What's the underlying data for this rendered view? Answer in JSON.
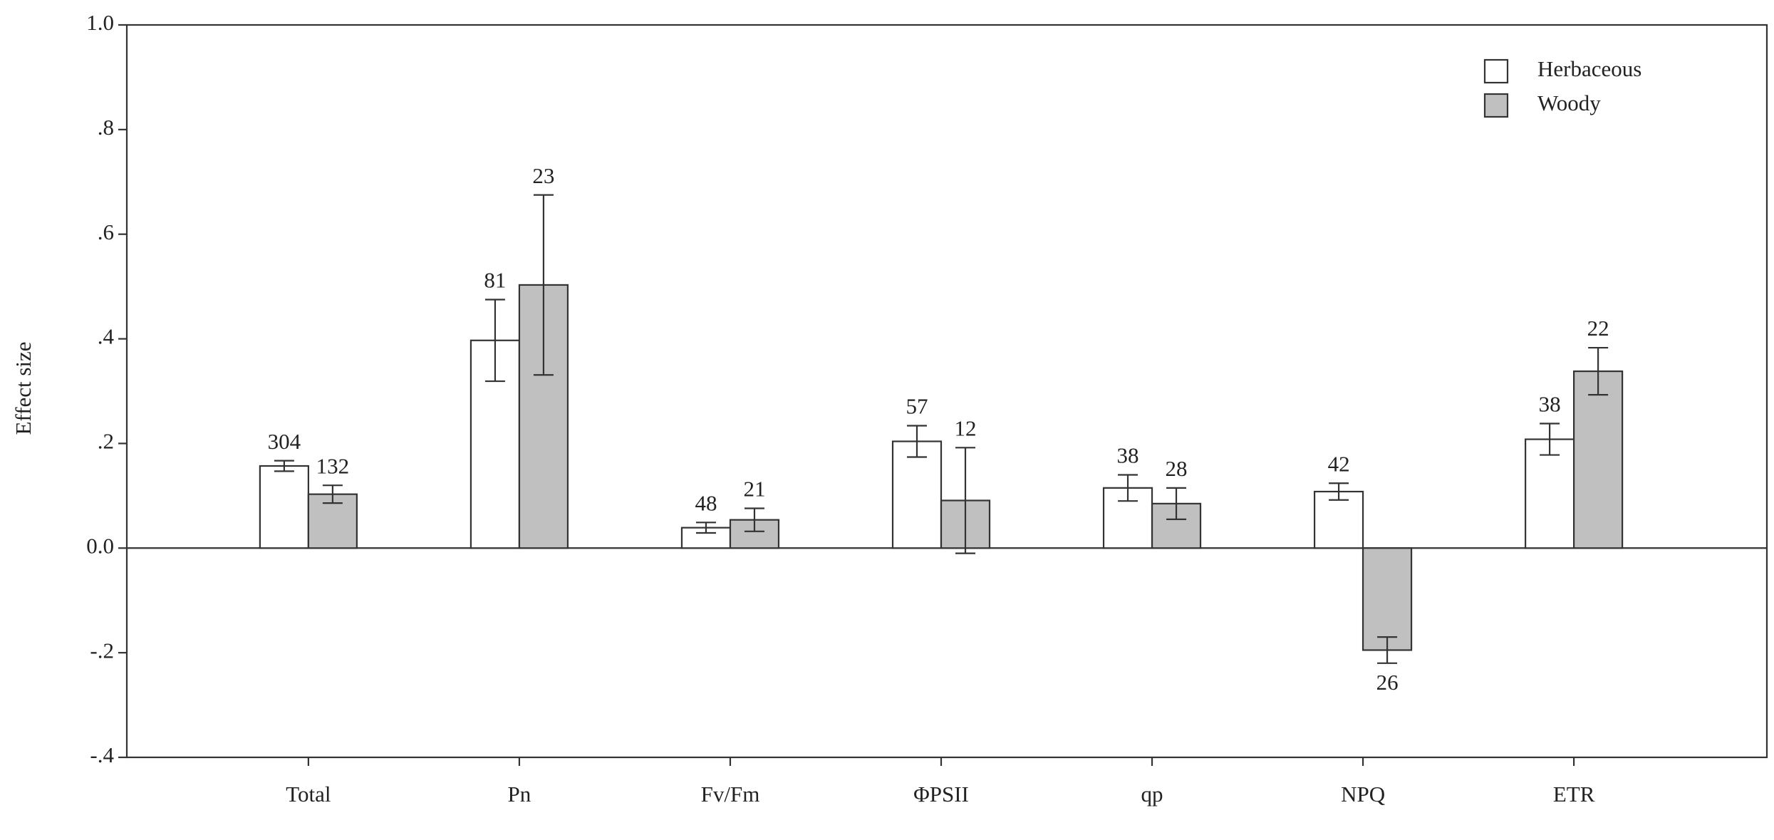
{
  "chart_data": {
    "type": "bar",
    "y_label": "Effect size",
    "categories": [
      "Total",
      "Pn",
      "Fv/Fm",
      "ΦPSII",
      "qp",
      "NPQ",
      "ETR"
    ],
    "series": [
      {
        "name": "Herbaceous",
        "color": "#ffffff",
        "values": [
          0.157,
          0.397,
          0.039,
          0.204,
          0.115,
          0.108,
          0.208
        ],
        "errors": [
          0.01,
          0.078,
          0.01,
          0.03,
          0.025,
          0.016,
          0.03
        ],
        "counts": [
          304,
          81,
          48,
          57,
          38,
          42,
          38
        ]
      },
      {
        "name": "Woody",
        "color": "#c0c0c0",
        "values": [
          0.103,
          0.503,
          0.054,
          0.091,
          0.085,
          -0.195,
          0.338
        ],
        "errors": [
          0.017,
          0.172,
          0.022,
          0.101,
          0.03,
          0.025,
          0.045
        ],
        "counts": [
          132,
          23,
          21,
          12,
          28,
          26,
          22
        ]
      }
    ],
    "ylim": [
      -0.4,
      1.0
    ],
    "yticks": [
      {
        "value": -0.4,
        "label": "-.4"
      },
      {
        "value": -0.2,
        "label": "-.2"
      },
      {
        "value": 0,
        "label": "0.0"
      },
      {
        "value": 0.2,
        "label": ".2"
      },
      {
        "value": 0.4,
        "label": ".4"
      },
      {
        "value": 0.6,
        "label": ".6"
      },
      {
        "value": 0.8,
        "label": ".8"
      },
      {
        "value": 1.0,
        "label": "1.0"
      }
    ],
    "legend": "upper right"
  }
}
